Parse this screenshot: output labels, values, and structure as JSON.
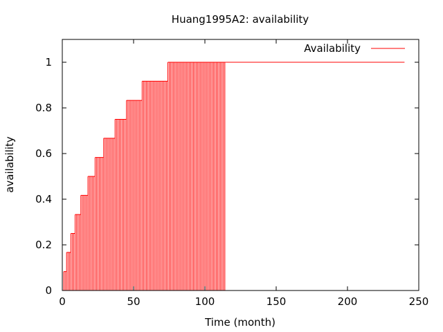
{
  "chart_data": {
    "type": "line",
    "title": "Huang1995A2: availability",
    "xlabel": "Time (month)",
    "ylabel": "availability",
    "xlim": [
      0,
      250
    ],
    "ylim": [
      0,
      1.1
    ],
    "x_ticks": [
      0,
      50,
      100,
      150,
      200,
      250
    ],
    "y_ticks": [
      0,
      0.2,
      0.4,
      0.6,
      0.8,
      1
    ],
    "y_tick_labels": [
      "0",
      "0.2",
      "0.4",
      "0.6",
      "0.8",
      "1"
    ],
    "grid": false,
    "legend_position": "top-right",
    "series": [
      {
        "name": "Availability",
        "color": "#ff0000",
        "impulse_style": true,
        "impulse_step_months": 1,
        "steps": [
          {
            "x_start": 1,
            "x_end": 3,
            "y": 0.083
          },
          {
            "x_start": 3,
            "x_end": 6,
            "y": 0.167
          },
          {
            "x_start": 6,
            "x_end": 9,
            "y": 0.25
          },
          {
            "x_start": 9,
            "x_end": 13,
            "y": 0.333
          },
          {
            "x_start": 13,
            "x_end": 18,
            "y": 0.417
          },
          {
            "x_start": 18,
            "x_end": 23,
            "y": 0.5
          },
          {
            "x_start": 23,
            "x_end": 29,
            "y": 0.583
          },
          {
            "x_start": 29,
            "x_end": 37,
            "y": 0.667
          },
          {
            "x_start": 37,
            "x_end": 45,
            "y": 0.75
          },
          {
            "x_start": 45,
            "x_end": 56,
            "y": 0.833
          },
          {
            "x_start": 56,
            "x_end": 74,
            "y": 0.917
          },
          {
            "x_start": 74,
            "x_end": 115,
            "y": 1.0
          }
        ],
        "tail": {
          "x_start": 115,
          "x_end": 240,
          "y": 1.0
        }
      }
    ]
  }
}
